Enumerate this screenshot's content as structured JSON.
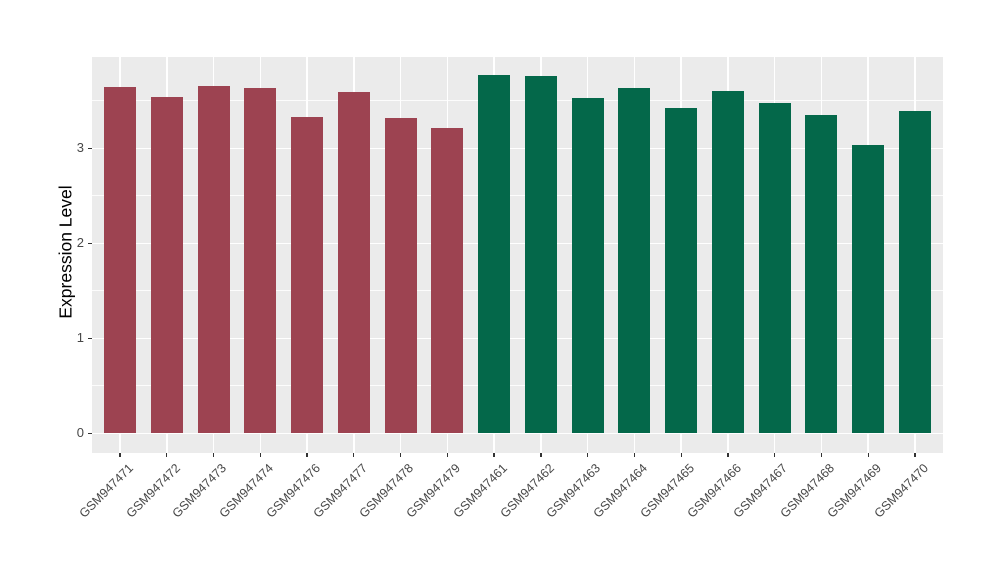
{
  "chart_data": {
    "type": "bar",
    "title": "",
    "xlabel": "",
    "ylabel": "Expression Level",
    "ylim": [
      -0.2,
      3.96
    ],
    "y_major_ticks": [
      0,
      1,
      2,
      3
    ],
    "y_minor_ticks": [
      0.5,
      1.5,
      2.5,
      3.5
    ],
    "grid": "major and minor horizontal white lines, vertical white line per category, gray panel",
    "legend_position": "none",
    "categories": [
      "GSM947471",
      "GSM947472",
      "GSM947473",
      "GSM947474",
      "GSM947476",
      "GSM947477",
      "GSM947478",
      "GSM947479",
      "GSM947461",
      "GSM947462",
      "GSM947463",
      "GSM947464",
      "GSM947465",
      "GSM947466",
      "GSM947467",
      "GSM947468",
      "GSM947469",
      "GSM947470"
    ],
    "values": [
      3.65,
      3.54,
      3.66,
      3.64,
      3.33,
      3.59,
      3.32,
      3.21,
      3.77,
      3.76,
      3.53,
      3.63,
      3.42,
      3.6,
      3.48,
      3.35,
      3.04,
      3.39
    ],
    "colors": [
      "#9D4351",
      "#9D4351",
      "#9D4351",
      "#9D4351",
      "#9D4351",
      "#9D4351",
      "#9D4351",
      "#9D4351",
      "#04684A",
      "#04684A",
      "#04684A",
      "#04684A",
      "#04684A",
      "#04684A",
      "#04684A",
      "#04684A",
      "#04684A",
      "#04684A"
    ],
    "group_colors": {
      "left_group": "#9D4351",
      "right_group": "#04684A"
    }
  },
  "style": {
    "panel_background": "#EBEBEB",
    "grid_color": "#FFFFFF",
    "axis_text_color": "#474747",
    "axis_title_color": "#000000",
    "tick_mark_color": "#333333",
    "figure_background": "#FFFFFF"
  }
}
